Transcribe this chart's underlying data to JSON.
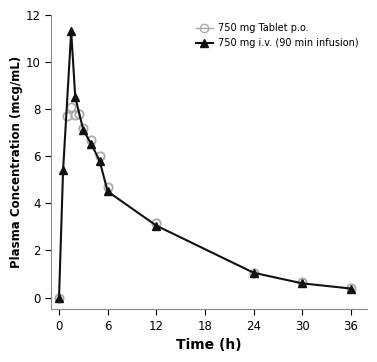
{
  "po_x": [
    0,
    1,
    1.5,
    2,
    2.5,
    3,
    4,
    5,
    6,
    12,
    24,
    30,
    36
  ],
  "po_y": [
    0.0,
    7.7,
    8.1,
    7.75,
    7.8,
    7.2,
    6.7,
    6.0,
    4.7,
    3.15,
    1.05,
    0.65,
    0.4
  ],
  "iv_x": [
    0,
    0.5,
    1.5,
    2,
    3,
    4,
    5,
    6,
    12,
    24,
    30,
    36
  ],
  "iv_y": [
    0.0,
    5.4,
    11.3,
    8.5,
    7.1,
    6.5,
    5.8,
    4.5,
    3.05,
    1.05,
    0.6,
    0.38
  ],
  "po_color": "#aaaaaa",
  "iv_color": "#111111",
  "xlabel": "Time (h)",
  "ylabel": "Plasma Concentration (mcg/mL)",
  "xlim": [
    -1,
    38
  ],
  "ylim": [
    -0.5,
    12
  ],
  "xticks": [
    0,
    6,
    12,
    18,
    24,
    30,
    36
  ],
  "yticks": [
    0,
    2,
    4,
    6,
    8,
    10,
    12
  ],
  "legend_po": "750 mg Tablet p.o.",
  "legend_iv": "750 mg i.v. (90 min infusion)",
  "bg_color": "#ffffff"
}
